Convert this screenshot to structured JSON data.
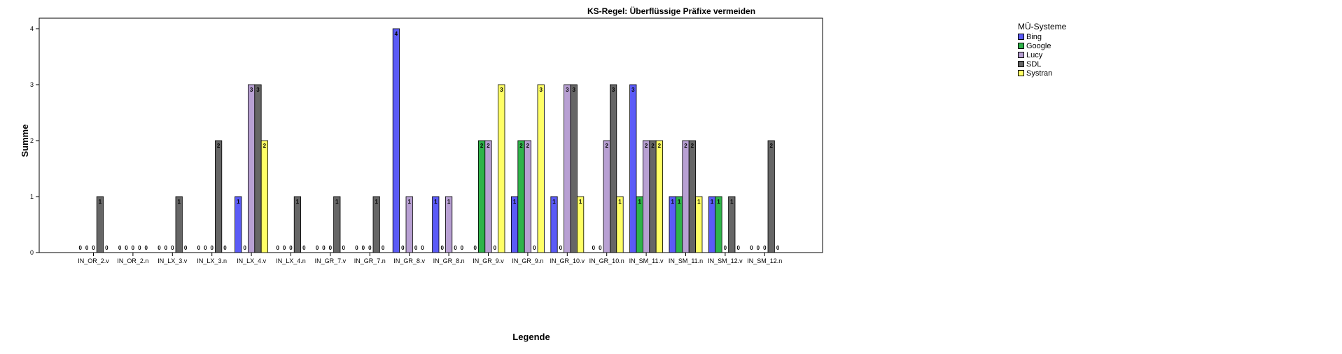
{
  "chart_data": {
    "type": "bar",
    "title": "KS-Regel: Überflüssige Präfixe vermeiden",
    "xlabel": "Legende",
    "ylabel": "Summe",
    "ylim": [
      0,
      4
    ],
    "yticks": [
      "0",
      "1",
      "2",
      "3",
      "4"
    ],
    "legend_title": "MÜ-Systeme",
    "legend_position": "right",
    "grid": false,
    "categories": [
      "IN_OR_2.v",
      "IN_OR_2.n",
      "IN_LX_3.v",
      "IN_LX_3.n",
      "IN_LX_4.v",
      "IN_LX_4.n",
      "IN_GR_7.v",
      "IN_GR_7.n",
      "IN_GR_8.v",
      "IN_GR_8.n",
      "IN_GR_9.v",
      "IN_GR_9.n",
      "IN_GR_10.v",
      "IN_GR_10.n",
      "IN_SM_11.v",
      "IN_SM_11.n",
      "IN_SM_12.v",
      "IN_SM_12.n"
    ],
    "series": [
      {
        "name": "Bing",
        "color": "#5b5bf7",
        "values": [
          0,
          0,
          0,
          0,
          1,
          0,
          0,
          0,
          4,
          1,
          0,
          1,
          1,
          0,
          3,
          1,
          1,
          0
        ]
      },
      {
        "name": "Google",
        "color": "#2fb34a",
        "values": [
          0,
          0,
          0,
          0,
          0,
          0,
          0,
          0,
          0,
          0,
          2,
          2,
          0,
          0,
          1,
          1,
          1,
          0
        ]
      },
      {
        "name": "Lucy",
        "color": "#b8a0d3",
        "values": [
          0,
          0,
          0,
          0,
          3,
          0,
          0,
          0,
          1,
          1,
          2,
          2,
          3,
          2,
          2,
          2,
          0,
          0
        ]
      },
      {
        "name": "SDL",
        "color": "#666666",
        "values": [
          1,
          0,
          1,
          2,
          3,
          1,
          1,
          1,
          0,
          0,
          0,
          0,
          3,
          3,
          2,
          2,
          1,
          2
        ]
      },
      {
        "name": "Systran",
        "color": "#ffff66",
        "values": [
          0,
          0,
          0,
          0,
          2,
          0,
          0,
          0,
          0,
          0,
          3,
          3,
          1,
          1,
          2,
          1,
          0,
          0
        ]
      }
    ]
  }
}
